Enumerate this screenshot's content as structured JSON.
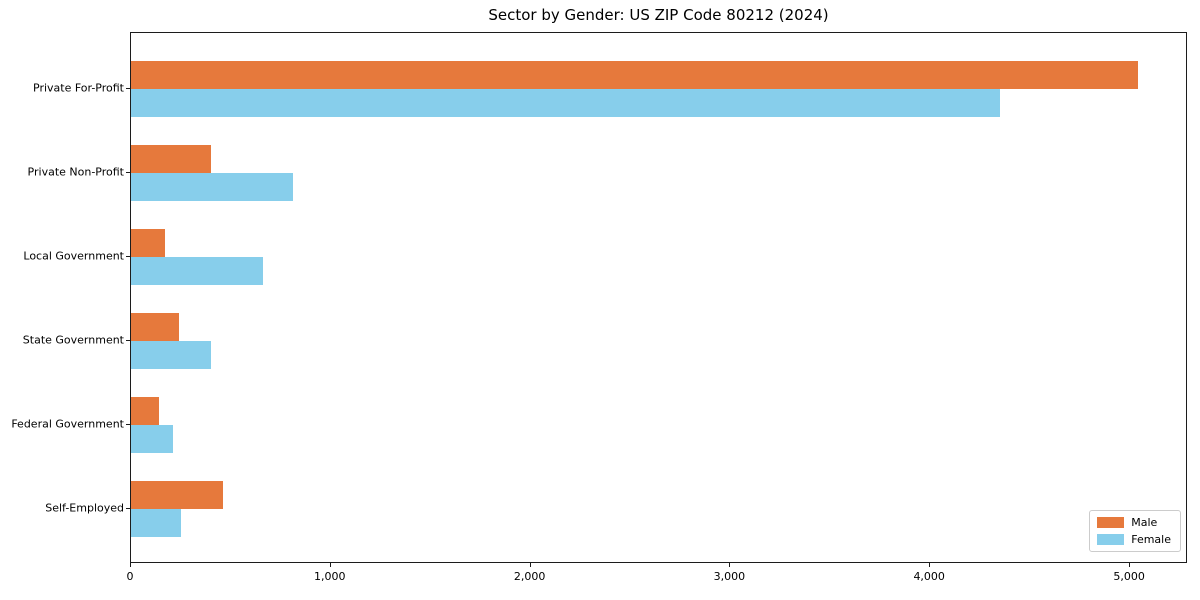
{
  "chart_data": {
    "type": "bar",
    "orientation": "horizontal",
    "title": "Sector by Gender: US ZIP Code 80212 (2024)",
    "categories": [
      "Private For-Profit",
      "Private Non-Profit",
      "Local Government",
      "State Government",
      "Federal Government",
      "Self-Employed"
    ],
    "series": [
      {
        "name": "Male",
        "color": "#e6793c",
        "values": [
          5040,
          400,
          170,
          240,
          140,
          460
        ]
      },
      {
        "name": "Female",
        "color": "#87ceeb",
        "values": [
          4350,
          810,
          660,
          400,
          210,
          250
        ]
      }
    ],
    "xlabel": "",
    "ylabel": "",
    "xlim": [
      0,
      5290
    ],
    "x_ticks": [
      0,
      1000,
      2000,
      3000,
      4000,
      5000
    ],
    "x_tick_labels": [
      "0",
      "1,000",
      "2,000",
      "3,000",
      "4,000",
      "5,000"
    ],
    "grid": false,
    "background_color": "#ffffff",
    "spine_color": "#1c1c1c",
    "legend": {
      "position": "lower right",
      "entries": [
        "Male",
        "Female"
      ]
    }
  }
}
